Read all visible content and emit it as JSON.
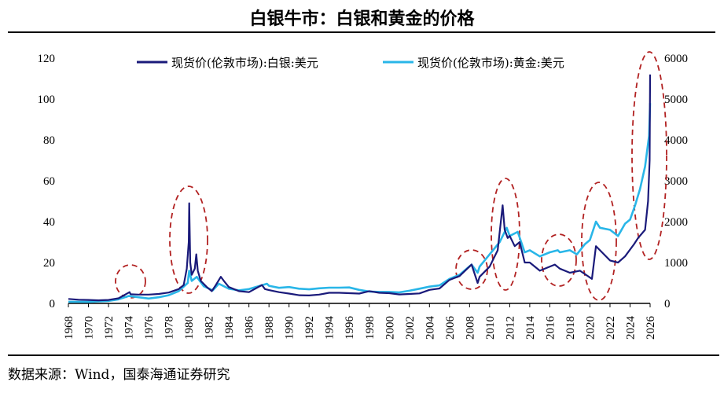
{
  "chart_data": {
    "type": "line",
    "title": "白银牛市：白银和黄金的价格",
    "source": "数据来源：Wind，国泰海通证券研究",
    "legend_position": "top",
    "grid": false,
    "x_ticks": [
      "1968",
      "1970",
      "1972",
      "1974",
      "1976",
      "1978",
      "1980",
      "1982",
      "1984",
      "1986",
      "1988",
      "1990",
      "1992",
      "1994",
      "1996",
      "1998",
      "2000",
      "2002",
      "2004",
      "2006",
      "2008",
      "2010",
      "2012",
      "2014",
      "2016",
      "2018",
      "2020",
      "2022",
      "2024",
      "2026"
    ],
    "xlim": [
      1968,
      2026
    ],
    "y_left": {
      "lim": [
        0,
        120
      ],
      "ticks": [
        "0",
        "20",
        "40",
        "60",
        "80",
        "100",
        "120"
      ]
    },
    "y_right": {
      "lim": [
        0,
        6000
      ],
      "ticks": [
        "0",
        "1000",
        "2000",
        "3000",
        "4000",
        "5000",
        "6000"
      ]
    },
    "colors": {
      "silver": "#1a1a7a",
      "gold": "#29b6e8",
      "annotation": "#b22222"
    },
    "highlighted_years": [
      1974.5,
      1980,
      2008.5,
      2012,
      2017,
      2021,
      2026
    ],
    "series": [
      {
        "name": "现货价(伦敦市场):白银:美元",
        "axis": "left",
        "x": [
          1968,
          1969,
          1970,
          1971,
          1972,
          1973,
          1974.1,
          1974.2,
          1975,
          1976,
          1977,
          1978,
          1979,
          1979.5,
          1979.8,
          1980.0,
          1980.05,
          1980.15,
          1980.3,
          1980.6,
          1980.75,
          1980.9,
          1981.2,
          1981.8,
          1982.3,
          1982.7,
          1983.2,
          1983.5,
          1984,
          1985,
          1986,
          1987.3,
          1987.6,
          1988,
          1989,
          1990,
          1991,
          1992,
          1993,
          1994,
          1995,
          1996,
          1997,
          1998,
          1999,
          2000,
          2001,
          2002,
          2003,
          2004,
          2005,
          2006,
          2007,
          2008.2,
          2008.8,
          2009,
          2010,
          2010.8,
          2011.3,
          2011.5,
          2011.8,
          2012,
          2012.5,
          2013,
          2013.5,
          2014,
          2015,
          2016.5,
          2017,
          2018,
          2019,
          2020.2,
          2020.6,
          2021,
          2022,
          2022.8,
          2023.5,
          2024.4,
          2024.8,
          2025.5,
          2025.8,
          2025.95,
          2026.0
        ],
        "y": [
          2.2,
          1.8,
          1.7,
          1.5,
          1.7,
          2.5,
          5.5,
          4.5,
          4.3,
          4.3,
          4.6,
          5.3,
          7,
          9,
          17,
          30,
          49,
          20,
          14,
          17,
          24,
          16,
          11,
          8,
          6,
          9,
          13,
          11,
          8,
          6,
          5.5,
          9,
          7,
          6.5,
          5.5,
          4.8,
          4,
          3.9,
          4.3,
          5.2,
          5.2,
          5,
          4.8,
          6,
          5.2,
          5,
          4.4,
          4.6,
          4.9,
          6.6,
          7.3,
          11.5,
          13.4,
          19,
          10,
          13,
          18,
          26,
          48,
          36,
          32,
          33,
          28,
          30,
          20,
          20,
          16,
          19,
          17,
          15,
          16,
          12,
          28,
          26,
          21,
          20,
          23,
          29,
          32,
          36,
          50,
          70,
          112
        ]
      },
      {
        "name": "现货价(伦敦市场):黄金:美元",
        "axis": "right",
        "x": [
          1968,
          1970,
          1972,
          1973,
          1974,
          1975,
          1976,
          1977,
          1978,
          1979,
          1979.9,
          1980.05,
          1980.3,
          1980.8,
          1981.5,
          1982.4,
          1983,
          1984,
          1985,
          1986,
          1987.8,
          1988,
          1989,
          1990,
          1991,
          1992,
          1993,
          1994,
          1995,
          1996,
          1997,
          1998,
          1999,
          2000,
          2001,
          2002,
          2003,
          2004,
          2005,
          2006,
          2007,
          2008.2,
          2008.8,
          2009,
          2010,
          2011,
          2011.7,
          2012,
          2012.8,
          2013.5,
          2014,
          2015,
          2016,
          2016.8,
          2017,
          2018,
          2018.7,
          2019.5,
          2020,
          2020.6,
          2021,
          2022,
          2022.8,
          2023.5,
          2024,
          2024.5,
          2025,
          2025.5,
          2025.9,
          2026.0
        ],
        "y": [
          40,
          36,
          60,
          100,
          180,
          150,
          120,
          150,
          200,
          300,
          500,
          800,
          550,
          650,
          420,
          320,
          480,
          360,
          320,
          350,
          480,
          430,
          380,
          400,
          360,
          345,
          370,
          385,
          385,
          390,
          330,
          290,
          280,
          280,
          270,
          310,
          360,
          410,
          440,
          600,
          700,
          950,
          750,
          900,
          1200,
          1500,
          1850,
          1650,
          1750,
          1250,
          1300,
          1150,
          1250,
          1300,
          1250,
          1300,
          1200,
          1450,
          1550,
          2000,
          1850,
          1800,
          1650,
          1950,
          2050,
          2400,
          2800,
          3350,
          4100,
          4900
        ]
      }
    ]
  }
}
